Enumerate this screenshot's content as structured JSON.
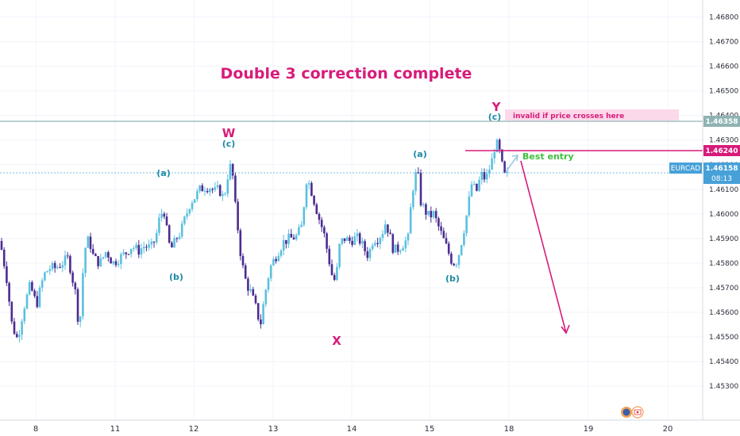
{
  "chart_data": {
    "type": "candlestick",
    "title": "Double 3 correction complete",
    "ylim": [
      1.4522,
      1.4685
    ],
    "y_ticks": [
      "1.46800",
      "1.46700",
      "1.46600",
      "1.46500",
      "1.46400",
      "1.46300",
      "1.46200",
      "1.46100",
      "1.46000",
      "1.45900",
      "1.45800",
      "1.45700",
      "1.45600",
      "1.45500",
      "1.45400",
      "1.45300"
    ],
    "x_ticks": [
      {
        "label": "8",
        "day": 8
      },
      {
        "label": "11",
        "day": 11
      },
      {
        "label": "12",
        "day": 12
      },
      {
        "label": "13",
        "day": 13
      },
      {
        "label": "14",
        "day": 14
      },
      {
        "label": "15",
        "day": 15
      },
      {
        "label": "18",
        "day": 18
      },
      {
        "label": "19",
        "day": 19
      },
      {
        "label": "20",
        "day": 20
      }
    ],
    "price_tags": {
      "invalid_level": "1.46358",
      "entry_level": "1.46240",
      "symbol": "EURCAD",
      "last_price": "1.46158",
      "countdown": "08:13"
    },
    "wave_labels": {
      "a1": "(a)",
      "b1": "(b)",
      "c1": "(c)",
      "W": "W",
      "X": "X",
      "a2": "(a)",
      "b2": "(b)",
      "c2": "(c)",
      "Y": "Y"
    },
    "annotations": {
      "invalid": "invalid if price crosses here",
      "entry": "Best entry"
    },
    "colors": {
      "bull": "#5bc0de",
      "bear": "#4b2c91",
      "magenta": "#d81b7a",
      "invalid_tag": "#8fb3b3",
      "last_tag": "#47a1d8",
      "entry_text": "#3fbf3f"
    },
    "path": [
      [
        0,
        1.4589
      ],
      [
        8,
        1.4575
      ],
      [
        15,
        1.4555
      ],
      [
        22,
        1.4549
      ],
      [
        30,
        1.4562
      ],
      [
        38,
        1.4571
      ],
      [
        46,
        1.4563
      ],
      [
        55,
        1.4575
      ],
      [
        62,
        1.4578
      ],
      [
        70,
        1.4578
      ],
      [
        78,
        1.458
      ],
      [
        86,
        1.4582
      ],
      [
        95,
        1.4568
      ],
      [
        100,
        1.4552
      ],
      [
        106,
        1.4585
      ],
      [
        112,
        1.459
      ],
      [
        118,
        1.4582
      ],
      [
        126,
        1.458
      ],
      [
        134,
        1.4585
      ],
      [
        142,
        1.458
      ],
      [
        150,
        1.4582
      ],
      [
        158,
        1.4584
      ],
      [
        166,
        1.4587
      ],
      [
        174,
        1.4585
      ],
      [
        182,
        1.4587
      ],
      [
        190,
        1.4586
      ],
      [
        196,
        1.459
      ],
      [
        202,
        1.46
      ],
      [
        207,
        1.4601
      ],
      [
        212,
        1.4588
      ],
      [
        217,
        1.4586
      ],
      [
        222,
        1.459
      ],
      [
        228,
        1.4593
      ],
      [
        234,
        1.4599
      ],
      [
        240,
        1.4605
      ],
      [
        246,
        1.4607
      ],
      [
        252,
        1.461
      ],
      [
        258,
        1.4611
      ],
      [
        264,
        1.4611
      ],
      [
        270,
        1.4609
      ],
      [
        276,
        1.461
      ],
      [
        282,
        1.4606
      ],
      [
        288,
        1.4618
      ],
      [
        292,
        1.462
      ],
      [
        296,
        1.4604
      ],
      [
        300,
        1.4593
      ],
      [
        304,
        1.4581
      ],
      [
        310,
        1.4572
      ],
      [
        316,
        1.4568
      ],
      [
        322,
        1.4562
      ],
      [
        328,
        1.4555
      ],
      [
        334,
        1.4568
      ],
      [
        340,
        1.4578
      ],
      [
        346,
        1.4582
      ],
      [
        352,
        1.4586
      ],
      [
        358,
        1.4589
      ],
      [
        366,
        1.459
      ],
      [
        374,
        1.4591
      ],
      [
        380,
        1.4595
      ],
      [
        386,
        1.4614
      ],
      [
        390,
        1.4612
      ],
      [
        396,
        1.4605
      ],
      [
        402,
        1.4598
      ],
      [
        408,
        1.4592
      ],
      [
        414,
        1.4582
      ],
      [
        420,
        1.4572
      ],
      [
        424,
        1.4576
      ],
      [
        428,
        1.4588
      ],
      [
        434,
        1.459
      ],
      [
        440,
        1.4589
      ],
      [
        446,
        1.459
      ],
      [
        452,
        1.459
      ],
      [
        458,
        1.4586
      ],
      [
        464,
        1.4583
      ],
      [
        470,
        1.459
      ],
      [
        476,
        1.459
      ],
      [
        482,
        1.4593
      ],
      [
        486,
        1.4597
      ],
      [
        490,
        1.4592
      ],
      [
        496,
        1.4585
      ],
      [
        502,
        1.4586
      ],
      [
        508,
        1.4588
      ],
      [
        514,
        1.459
      ],
      [
        518,
        1.4605
      ],
      [
        522,
        1.4615
      ],
      [
        526,
        1.4617
      ],
      [
        530,
        1.4605
      ],
      [
        534,
        1.4602
      ],
      [
        540,
        1.4599
      ],
      [
        546,
        1.46
      ],
      [
        552,
        1.4595
      ],
      [
        558,
        1.459
      ],
      [
        564,
        1.4585
      ],
      [
        570,
        1.458
      ],
      [
        576,
        1.4581
      ],
      [
        582,
        1.459
      ],
      [
        588,
        1.46
      ],
      [
        594,
        1.4612
      ],
      [
        600,
        1.4609
      ],
      [
        606,
        1.4616
      ],
      [
        612,
        1.4614
      ],
      [
        616,
        1.4618
      ],
      [
        620,
        1.4622
      ],
      [
        624,
        1.4629
      ],
      [
        628,
        1.4627
      ],
      [
        632,
        1.462
      ],
      [
        636,
        1.4615
      ],
      [
        640,
        1.4616
      ]
    ]
  }
}
